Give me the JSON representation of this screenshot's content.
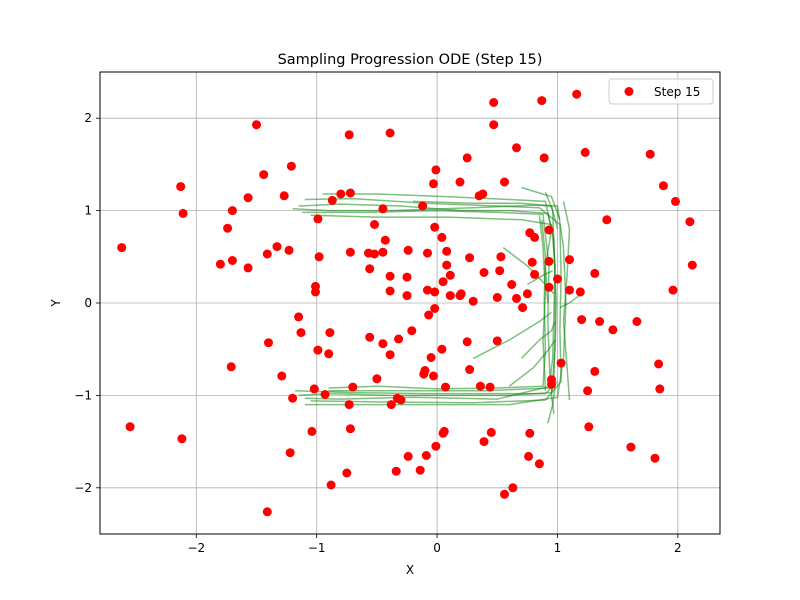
{
  "chart_data": {
    "type": "scatter",
    "title": "Sampling Progression ODE (Step 15)",
    "xlabel": "X",
    "ylabel": "Y",
    "xlim": [
      -2.8,
      2.35
    ],
    "ylim": [
      -2.5,
      2.5
    ],
    "xticks": [
      -2,
      -1,
      0,
      1,
      2
    ],
    "xtick_labels": [
      "−2",
      "−1",
      "0",
      "1",
      "2"
    ],
    "yticks": [
      -2,
      -1,
      0,
      1,
      2
    ],
    "ytick_labels": [
      "−2",
      "−1",
      "0",
      "1",
      "2"
    ],
    "grid": true,
    "legend": {
      "position": "top-right",
      "entries": [
        "Step 15"
      ]
    },
    "series": [
      {
        "name": "Step 15",
        "color": "#ff0000",
        "marker": "circle",
        "points": [
          [
            -2.62,
            0.6
          ],
          [
            -2.55,
            -1.34
          ],
          [
            -2.13,
            1.26
          ],
          [
            -2.11,
            0.97
          ],
          [
            -2.12,
            -1.47
          ],
          [
            -1.8,
            0.42
          ],
          [
            -1.74,
            0.81
          ],
          [
            -1.7,
            1.0
          ],
          [
            -1.7,
            0.46
          ],
          [
            -1.71,
            -0.69
          ],
          [
            -1.57,
            1.14
          ],
          [
            -1.57,
            0.38
          ],
          [
            -1.5,
            1.93
          ],
          [
            -1.44,
            1.39
          ],
          [
            -1.41,
            0.53
          ],
          [
            -1.4,
            -0.43
          ],
          [
            -1.41,
            -2.26
          ],
          [
            -1.33,
            0.61
          ],
          [
            -1.29,
            -0.79
          ],
          [
            -1.27,
            1.16
          ],
          [
            -1.23,
            0.57
          ],
          [
            -1.21,
            1.48
          ],
          [
            -1.22,
            -1.62
          ],
          [
            -1.2,
            -1.03
          ],
          [
            -1.15,
            -0.15
          ],
          [
            -1.13,
            -0.32
          ],
          [
            -1.04,
            -1.39
          ],
          [
            -1.02,
            -0.93
          ],
          [
            -1.01,
            0.12
          ],
          [
            -1.01,
            0.18
          ],
          [
            -0.99,
            0.91
          ],
          [
            -0.98,
            0.5
          ],
          [
            -0.99,
            -0.51
          ],
          [
            -0.93,
            -0.99
          ],
          [
            -0.9,
            -0.55
          ],
          [
            -0.89,
            -0.32
          ],
          [
            -0.88,
            -1.97
          ],
          [
            -0.87,
            1.11
          ],
          [
            -0.8,
            1.18
          ],
          [
            -0.75,
            -1.84
          ],
          [
            -0.73,
            1.82
          ],
          [
            -0.72,
            1.19
          ],
          [
            -0.72,
            0.55
          ],
          [
            -0.73,
            -1.1
          ],
          [
            -0.72,
            -1.36
          ],
          [
            -0.7,
            -0.91
          ],
          [
            -0.57,
            0.54
          ],
          [
            -0.56,
            0.37
          ],
          [
            -0.56,
            -0.37
          ],
          [
            -0.52,
            0.53
          ],
          [
            -0.52,
            0.85
          ],
          [
            -0.5,
            -0.82
          ],
          [
            -0.45,
            1.02
          ],
          [
            -0.45,
            0.55
          ],
          [
            -0.45,
            -0.44
          ],
          [
            -0.43,
            0.68
          ],
          [
            -0.39,
            1.84
          ],
          [
            -0.39,
            0.29
          ],
          [
            -0.39,
            0.13
          ],
          [
            -0.39,
            -0.56
          ],
          [
            -0.38,
            -1.1
          ],
          [
            -0.34,
            -1.82
          ],
          [
            -0.33,
            -1.03
          ],
          [
            -0.32,
            -0.39
          ],
          [
            -0.3,
            -1.05
          ],
          [
            -0.25,
            0.28
          ],
          [
            -0.24,
            0.57
          ],
          [
            -0.25,
            0.08
          ],
          [
            -0.24,
            -1.66
          ],
          [
            -0.21,
            -0.3
          ],
          [
            -0.14,
            -1.81
          ],
          [
            -0.12,
            1.05
          ],
          [
            -0.1,
            -0.73
          ],
          [
            -0.11,
            -0.77
          ],
          [
            -0.08,
            0.54
          ],
          [
            -0.08,
            0.14
          ],
          [
            -0.09,
            -1.65
          ],
          [
            -0.07,
            -0.13
          ],
          [
            -0.05,
            -0.59
          ],
          [
            -0.03,
            -0.79
          ],
          [
            -0.03,
            1.29
          ],
          [
            -0.02,
            0.82
          ],
          [
            -0.02,
            0.12
          ],
          [
            -0.02,
            -0.06
          ],
          [
            -0.01,
            1.44
          ],
          [
            -0.01,
            -1.55
          ],
          [
            0.04,
            0.71
          ],
          [
            0.04,
            -0.5
          ],
          [
            0.05,
            0.23
          ],
          [
            0.05,
            -1.41
          ],
          [
            0.06,
            -1.39
          ],
          [
            0.08,
            0.56
          ],
          [
            0.08,
            0.41
          ],
          [
            0.07,
            -0.91
          ],
          [
            0.11,
            0.3
          ],
          [
            0.11,
            0.08
          ],
          [
            0.19,
            1.31
          ],
          [
            0.19,
            0.08
          ],
          [
            0.2,
            0.1
          ],
          [
            0.25,
            1.57
          ],
          [
            0.25,
            -0.42
          ],
          [
            0.27,
            0.49
          ],
          [
            0.27,
            -0.72
          ],
          [
            0.3,
            0.02
          ],
          [
            0.35,
            1.16
          ],
          [
            0.36,
            -0.9
          ],
          [
            0.38,
            1.18
          ],
          [
            0.39,
            0.33
          ],
          [
            0.39,
            -1.5
          ],
          [
            0.44,
            -0.91
          ],
          [
            0.45,
            -1.4
          ],
          [
            0.47,
            2.17
          ],
          [
            0.47,
            1.93
          ],
          [
            0.5,
            0.06
          ],
          [
            0.5,
            -0.41
          ],
          [
            0.53,
            0.5
          ],
          [
            0.52,
            0.35
          ],
          [
            0.56,
            1.31
          ],
          [
            0.56,
            -2.07
          ],
          [
            0.62,
            0.2
          ],
          [
            0.63,
            -2.0
          ],
          [
            0.66,
            1.68
          ],
          [
            0.66,
            0.05
          ],
          [
            0.71,
            -0.05
          ],
          [
            0.75,
            0.1
          ],
          [
            0.77,
            0.76
          ],
          [
            0.77,
            -1.41
          ],
          [
            0.76,
            -1.66
          ],
          [
            0.79,
            0.44
          ],
          [
            0.81,
            0.71
          ],
          [
            0.81,
            0.31
          ],
          [
            0.85,
            -1.74
          ],
          [
            0.87,
            2.19
          ],
          [
            0.89,
            1.57
          ],
          [
            0.93,
            0.79
          ],
          [
            0.93,
            0.45
          ],
          [
            0.93,
            0.17
          ],
          [
            0.95,
            -0.88
          ],
          [
            0.95,
            -0.83
          ],
          [
            1.0,
            0.26
          ],
          [
            1.03,
            -0.65
          ],
          [
            1.1,
            0.47
          ],
          [
            1.1,
            0.14
          ],
          [
            1.16,
            2.26
          ],
          [
            1.19,
            0.12
          ],
          [
            1.2,
            -0.18
          ],
          [
            1.23,
            1.63
          ],
          [
            1.25,
            -0.95
          ],
          [
            1.26,
            -1.34
          ],
          [
            1.31,
            0.32
          ],
          [
            1.31,
            -0.74
          ],
          [
            1.35,
            -0.2
          ],
          [
            1.41,
            0.9
          ],
          [
            1.46,
            -0.29
          ],
          [
            1.61,
            -1.56
          ],
          [
            1.66,
            -0.2
          ],
          [
            1.77,
            1.61
          ],
          [
            1.81,
            -1.68
          ],
          [
            1.84,
            -0.66
          ],
          [
            1.85,
            -0.93
          ],
          [
            1.88,
            1.27
          ],
          [
            1.96,
            0.14
          ],
          [
            1.98,
            1.1
          ],
          [
            2.1,
            0.88
          ],
          [
            2.12,
            0.41
          ]
        ]
      }
    ],
    "trajectories": {
      "color": "#008000",
      "opacity": 0.5,
      "lines": [
        [
          [
            -1.15,
            1.05
          ],
          [
            -0.8,
            1.07
          ],
          [
            -0.3,
            1.05
          ],
          [
            0.2,
            1.0
          ],
          [
            0.6,
            1.0
          ],
          [
            0.92,
            0.97
          ],
          [
            0.97,
            0.7
          ],
          [
            0.98,
            0.2
          ],
          [
            0.98,
            -0.3
          ],
          [
            0.97,
            -0.8
          ],
          [
            0.95,
            -0.97
          ],
          [
            0.6,
            -1.0
          ],
          [
            0.1,
            -1.0
          ],
          [
            -0.4,
            -1.0
          ],
          [
            -0.9,
            -0.98
          ],
          [
            -1.15,
            -1.0
          ]
        ],
        [
          [
            -1.12,
            0.98
          ],
          [
            -0.6,
            0.98
          ],
          [
            0.0,
            1.0
          ],
          [
            0.5,
            0.98
          ],
          [
            0.88,
            0.96
          ],
          [
            0.93,
            0.4
          ],
          [
            0.92,
            -0.2
          ],
          [
            0.94,
            -0.9
          ],
          [
            0.5,
            -1.04
          ],
          [
            -0.2,
            -1.02
          ],
          [
            -0.8,
            -1.04
          ],
          [
            -1.1,
            -1.03
          ]
        ],
        [
          [
            -1.1,
            1.12
          ],
          [
            -0.7,
            1.13
          ],
          [
            -0.1,
            1.08
          ],
          [
            0.5,
            1.05
          ],
          [
            0.85,
            1.03
          ],
          [
            1.02,
            0.85
          ],
          [
            1.03,
            0.3
          ],
          [
            1.02,
            -0.3
          ],
          [
            1.03,
            -0.85
          ],
          [
            0.9,
            -1.05
          ],
          [
            0.3,
            -1.08
          ],
          [
            -0.5,
            -1.07
          ],
          [
            -1.05,
            -1.06
          ]
        ],
        [
          [
            -1.05,
            0.95
          ],
          [
            -0.5,
            0.93
          ],
          [
            0.1,
            0.93
          ],
          [
            0.7,
            0.9
          ],
          [
            0.95,
            0.85
          ],
          [
            0.98,
            0.4
          ],
          [
            0.97,
            -0.1
          ],
          [
            0.96,
            -0.6
          ],
          [
            0.93,
            -0.92
          ],
          [
            0.4,
            -0.95
          ],
          [
            -0.3,
            -0.95
          ],
          [
            -0.9,
            -0.95
          ]
        ],
        [
          [
            -1.2,
            1.02
          ],
          [
            -0.9,
            1.0
          ],
          [
            -0.4,
            1.0
          ],
          [
            0.3,
            1.03
          ],
          [
            0.8,
            1.06
          ],
          [
            1.0,
            1.05
          ],
          [
            1.05,
            0.6
          ],
          [
            1.07,
            0.0
          ],
          [
            1.05,
            -0.6
          ],
          [
            1.0,
            -1.02
          ],
          [
            0.6,
            -1.1
          ],
          [
            0.0,
            -1.1
          ],
          [
            -0.6,
            -1.1
          ],
          [
            -1.1,
            -1.1
          ]
        ],
        [
          [
            -0.95,
            1.18
          ],
          [
            -0.5,
            1.18
          ],
          [
            0.1,
            1.15
          ],
          [
            0.6,
            1.12
          ],
          [
            0.9,
            1.1
          ],
          [
            0.95,
            0.8
          ],
          [
            0.9,
            0.4
          ],
          [
            0.92,
            0.0
          ]
        ],
        [
          [
            0.9,
            1.2
          ],
          [
            0.96,
            1.0
          ],
          [
            0.97,
            0.6
          ],
          [
            0.99,
            0.0
          ],
          [
            0.98,
            -0.5
          ],
          [
            0.95,
            -1.0
          ],
          [
            0.97,
            -1.2
          ]
        ],
        [
          [
            1.05,
            1.1
          ],
          [
            1.1,
            0.8
          ],
          [
            1.08,
            0.3
          ],
          [
            1.05,
            -0.2
          ],
          [
            1.08,
            -0.7
          ],
          [
            1.1,
            -1.05
          ]
        ],
        [
          [
            0.85,
            0.95
          ],
          [
            0.88,
            0.6
          ],
          [
            0.9,
            0.1
          ],
          [
            0.88,
            -0.4
          ],
          [
            0.9,
            -0.95
          ]
        ],
        [
          [
            -0.9,
            -0.92
          ],
          [
            -0.5,
            -0.9
          ],
          [
            0.0,
            -0.93
          ],
          [
            0.5,
            -0.92
          ],
          [
            0.88,
            -0.9
          ],
          [
            0.9,
            -0.5
          ],
          [
            0.89,
            0.0
          ],
          [
            0.9,
            0.5
          ],
          [
            0.87,
            0.9
          ]
        ],
        [
          [
            0.3,
            -0.6
          ],
          [
            0.6,
            -0.4
          ],
          [
            0.85,
            -0.2
          ],
          [
            0.95,
            -0.1
          ]
        ],
        [
          [
            0.55,
            0.6
          ],
          [
            0.75,
            0.4
          ],
          [
            0.9,
            0.2
          ],
          [
            0.97,
            0.1
          ]
        ],
        [
          [
            0.6,
            -0.9
          ],
          [
            0.8,
            -0.7
          ],
          [
            0.93,
            -0.5
          ],
          [
            0.98,
            -0.4
          ]
        ],
        [
          [
            -0.2,
            1.1
          ],
          [
            0.3,
            1.08
          ],
          [
            0.7,
            1.08
          ],
          [
            0.95,
            1.05
          ],
          [
            1.0,
            0.8
          ]
        ],
        [
          [
            -1.18,
            -0.95
          ],
          [
            -0.7,
            -0.97
          ],
          [
            -0.1,
            -0.98
          ],
          [
            0.5,
            -0.98
          ],
          [
            0.9,
            -0.98
          ],
          [
            1.0,
            -0.85
          ]
        ],
        [
          [
            0.7,
            1.25
          ],
          [
            0.95,
            1.15
          ],
          [
            1.02,
            0.9
          ]
        ],
        [
          [
            0.92,
            -1.3
          ],
          [
            0.96,
            -1.1
          ],
          [
            0.98,
            -0.9
          ]
        ],
        [
          [
            0.7,
            -0.6
          ],
          [
            0.85,
            -0.4
          ],
          [
            0.95,
            -0.3
          ],
          [
            0.98,
            -0.2
          ]
        ],
        [
          [
            1.2,
            0.1
          ],
          [
            1.1,
            0.0
          ],
          [
            1.02,
            -0.05
          ]
        ],
        [
          [
            0.75,
            0.2
          ],
          [
            0.88,
            0.3
          ],
          [
            0.96,
            0.35
          ]
        ]
      ]
    }
  }
}
